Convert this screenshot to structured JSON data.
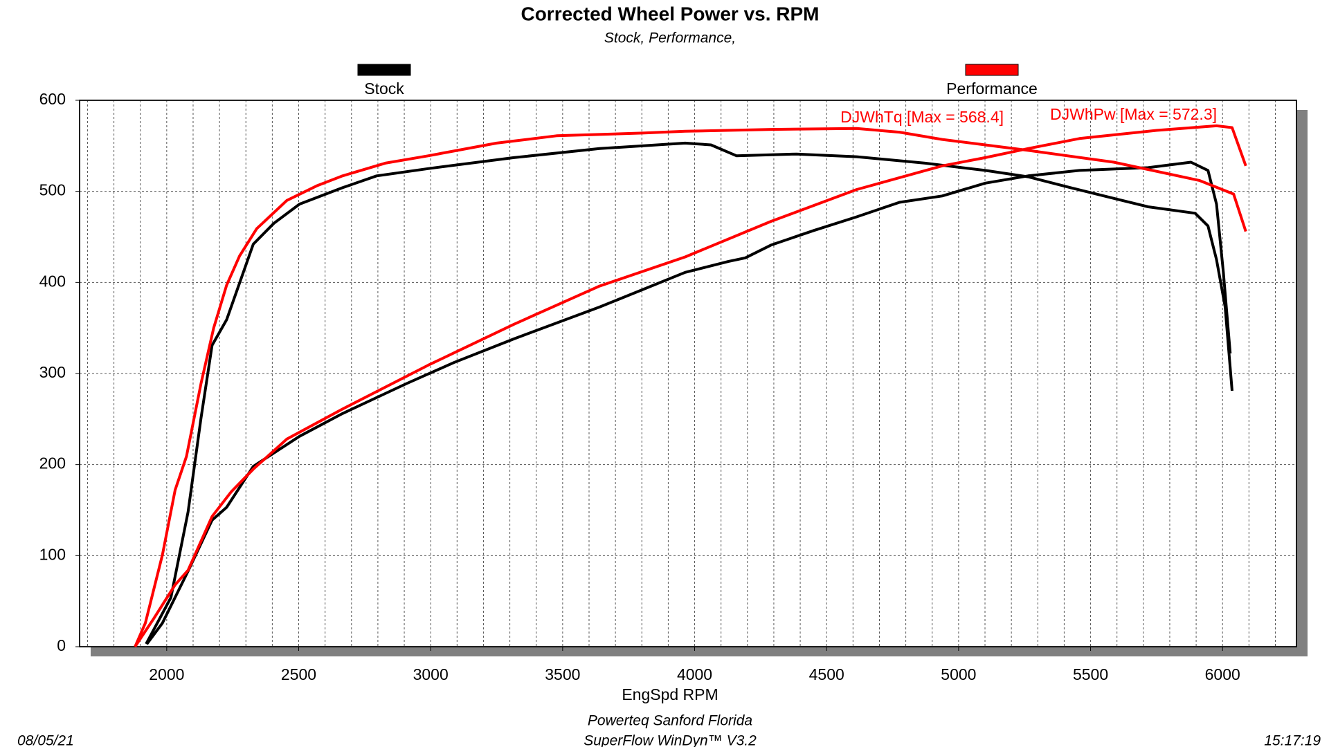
{
  "chart_data": {
    "type": "line",
    "title": "Corrected Wheel Power vs. RPM",
    "subtitle": "Stock, Performance,",
    "x_label": "EngSpd RPM",
    "legend": [
      {
        "name": "Stock",
        "color": "#000000"
      },
      {
        "name": "Performance",
        "color": "#ff0000"
      }
    ],
    "annotations": [
      {
        "text": "DJWhTq [Max = 568.4]",
        "color": "#ff0000"
      },
      {
        "text": "DJWhPw [Max = 572.3]",
        "color": "#ff0000"
      }
    ],
    "footer": {
      "shop": "Powerteq Sanford Florida",
      "software": "SuperFlow WinDyn™ V3.2",
      "date": "08/05/21",
      "time": "15:17:19"
    },
    "xlim": [
      1670,
      6280
    ],
    "ylim": [
      0,
      600
    ],
    "xticks": [
      2000,
      2500,
      3000,
      3500,
      4000,
      4500,
      5000,
      5500,
      6000
    ],
    "yticks": [
      0,
      100,
      200,
      300,
      400,
      500,
      600
    ],
    "x_minor_ticks": [
      1700,
      1800,
      1900,
      2000,
      2100,
      2200,
      2300,
      2400,
      2500,
      2600,
      2700,
      2800,
      2900,
      3000,
      3100,
      3200,
      3300,
      3400,
      3500,
      3600,
      3700,
      3800,
      3900,
      4000,
      4100,
      4200,
      4300,
      4400,
      4500,
      4600,
      4700,
      4800,
      4900,
      5000,
      5100,
      5200,
      5300,
      5400,
      5500,
      5600,
      5700,
      5800,
      5900,
      6000,
      6100,
      6200
    ],
    "grid": true,
    "series": [
      {
        "color": "#000000",
        "x": [
          1922,
          2016,
          2081,
          2130,
          2172,
          2227,
          2328,
          2406,
          2503,
          2666,
          2795,
          2990,
          3315,
          3640,
          3964,
          4062,
          4159,
          4386,
          4614,
          4873,
          5101,
          5263,
          5425,
          5620,
          5718,
          5896,
          5945,
          5977,
          6010,
          6036
        ],
        "values": [
          3,
          54,
          148,
          251,
          331,
          359,
          442,
          465,
          486,
          504,
          517,
          525,
          537,
          547,
          553,
          551,
          539,
          541,
          538,
          531,
          523,
          516,
          504,
          490,
          483,
          476,
          462,
          425,
          373,
          281
        ]
      },
      {
        "color": "#000000",
        "x": [
          1925,
          1984,
          2081,
          2172,
          2227,
          2328,
          2503,
          2666,
          2909,
          3088,
          3315,
          3640,
          3964,
          4127,
          4192,
          4289,
          4451,
          4614,
          4776,
          4938,
          5101,
          5263,
          5458,
          5718,
          5880,
          5945,
          5977,
          6003,
          6029
        ],
        "values": [
          3,
          26,
          83,
          139,
          153,
          198,
          231,
          256,
          289,
          312,
          338,
          373,
          411,
          423,
          427,
          441,
          457,
          472,
          488,
          495,
          509,
          517,
          523,
          526,
          532,
          523,
          486,
          411,
          322
        ]
      },
      {
        "color": "#ff0000",
        "x": [
          1880,
          1919,
          1984,
          2032,
          2075,
          2130,
          2178,
          2227,
          2276,
          2341,
          2455,
          2568,
          2666,
          2828,
          2990,
          3250,
          3477,
          3802,
          3964,
          4289,
          4614,
          4776,
          4938,
          5101,
          5263,
          5588,
          5912,
          6042,
          6088
        ],
        "values": [
          0,
          26,
          101,
          172,
          209,
          289,
          350,
          397,
          429,
          459,
          490,
          506,
          517,
          531,
          539,
          553,
          561,
          564,
          566,
          568,
          569,
          565,
          557,
          551,
          545,
          532,
          512,
          497,
          456
        ]
      },
      {
        "color": "#ff0000",
        "x": [
          1880,
          1951,
          2032,
          2081,
          2172,
          2244,
          2328,
          2455,
          2666,
          2990,
          3315,
          3640,
          3964,
          4289,
          4614,
          4938,
          5101,
          5263,
          5458,
          5588,
          5750,
          5977,
          6036,
          6088
        ],
        "values": [
          0,
          31,
          68,
          84,
          143,
          170,
          195,
          228,
          261,
          309,
          354,
          396,
          428,
          467,
          502,
          528,
          537,
          547,
          558,
          562,
          567,
          572,
          570,
          528
        ]
      }
    ]
  }
}
